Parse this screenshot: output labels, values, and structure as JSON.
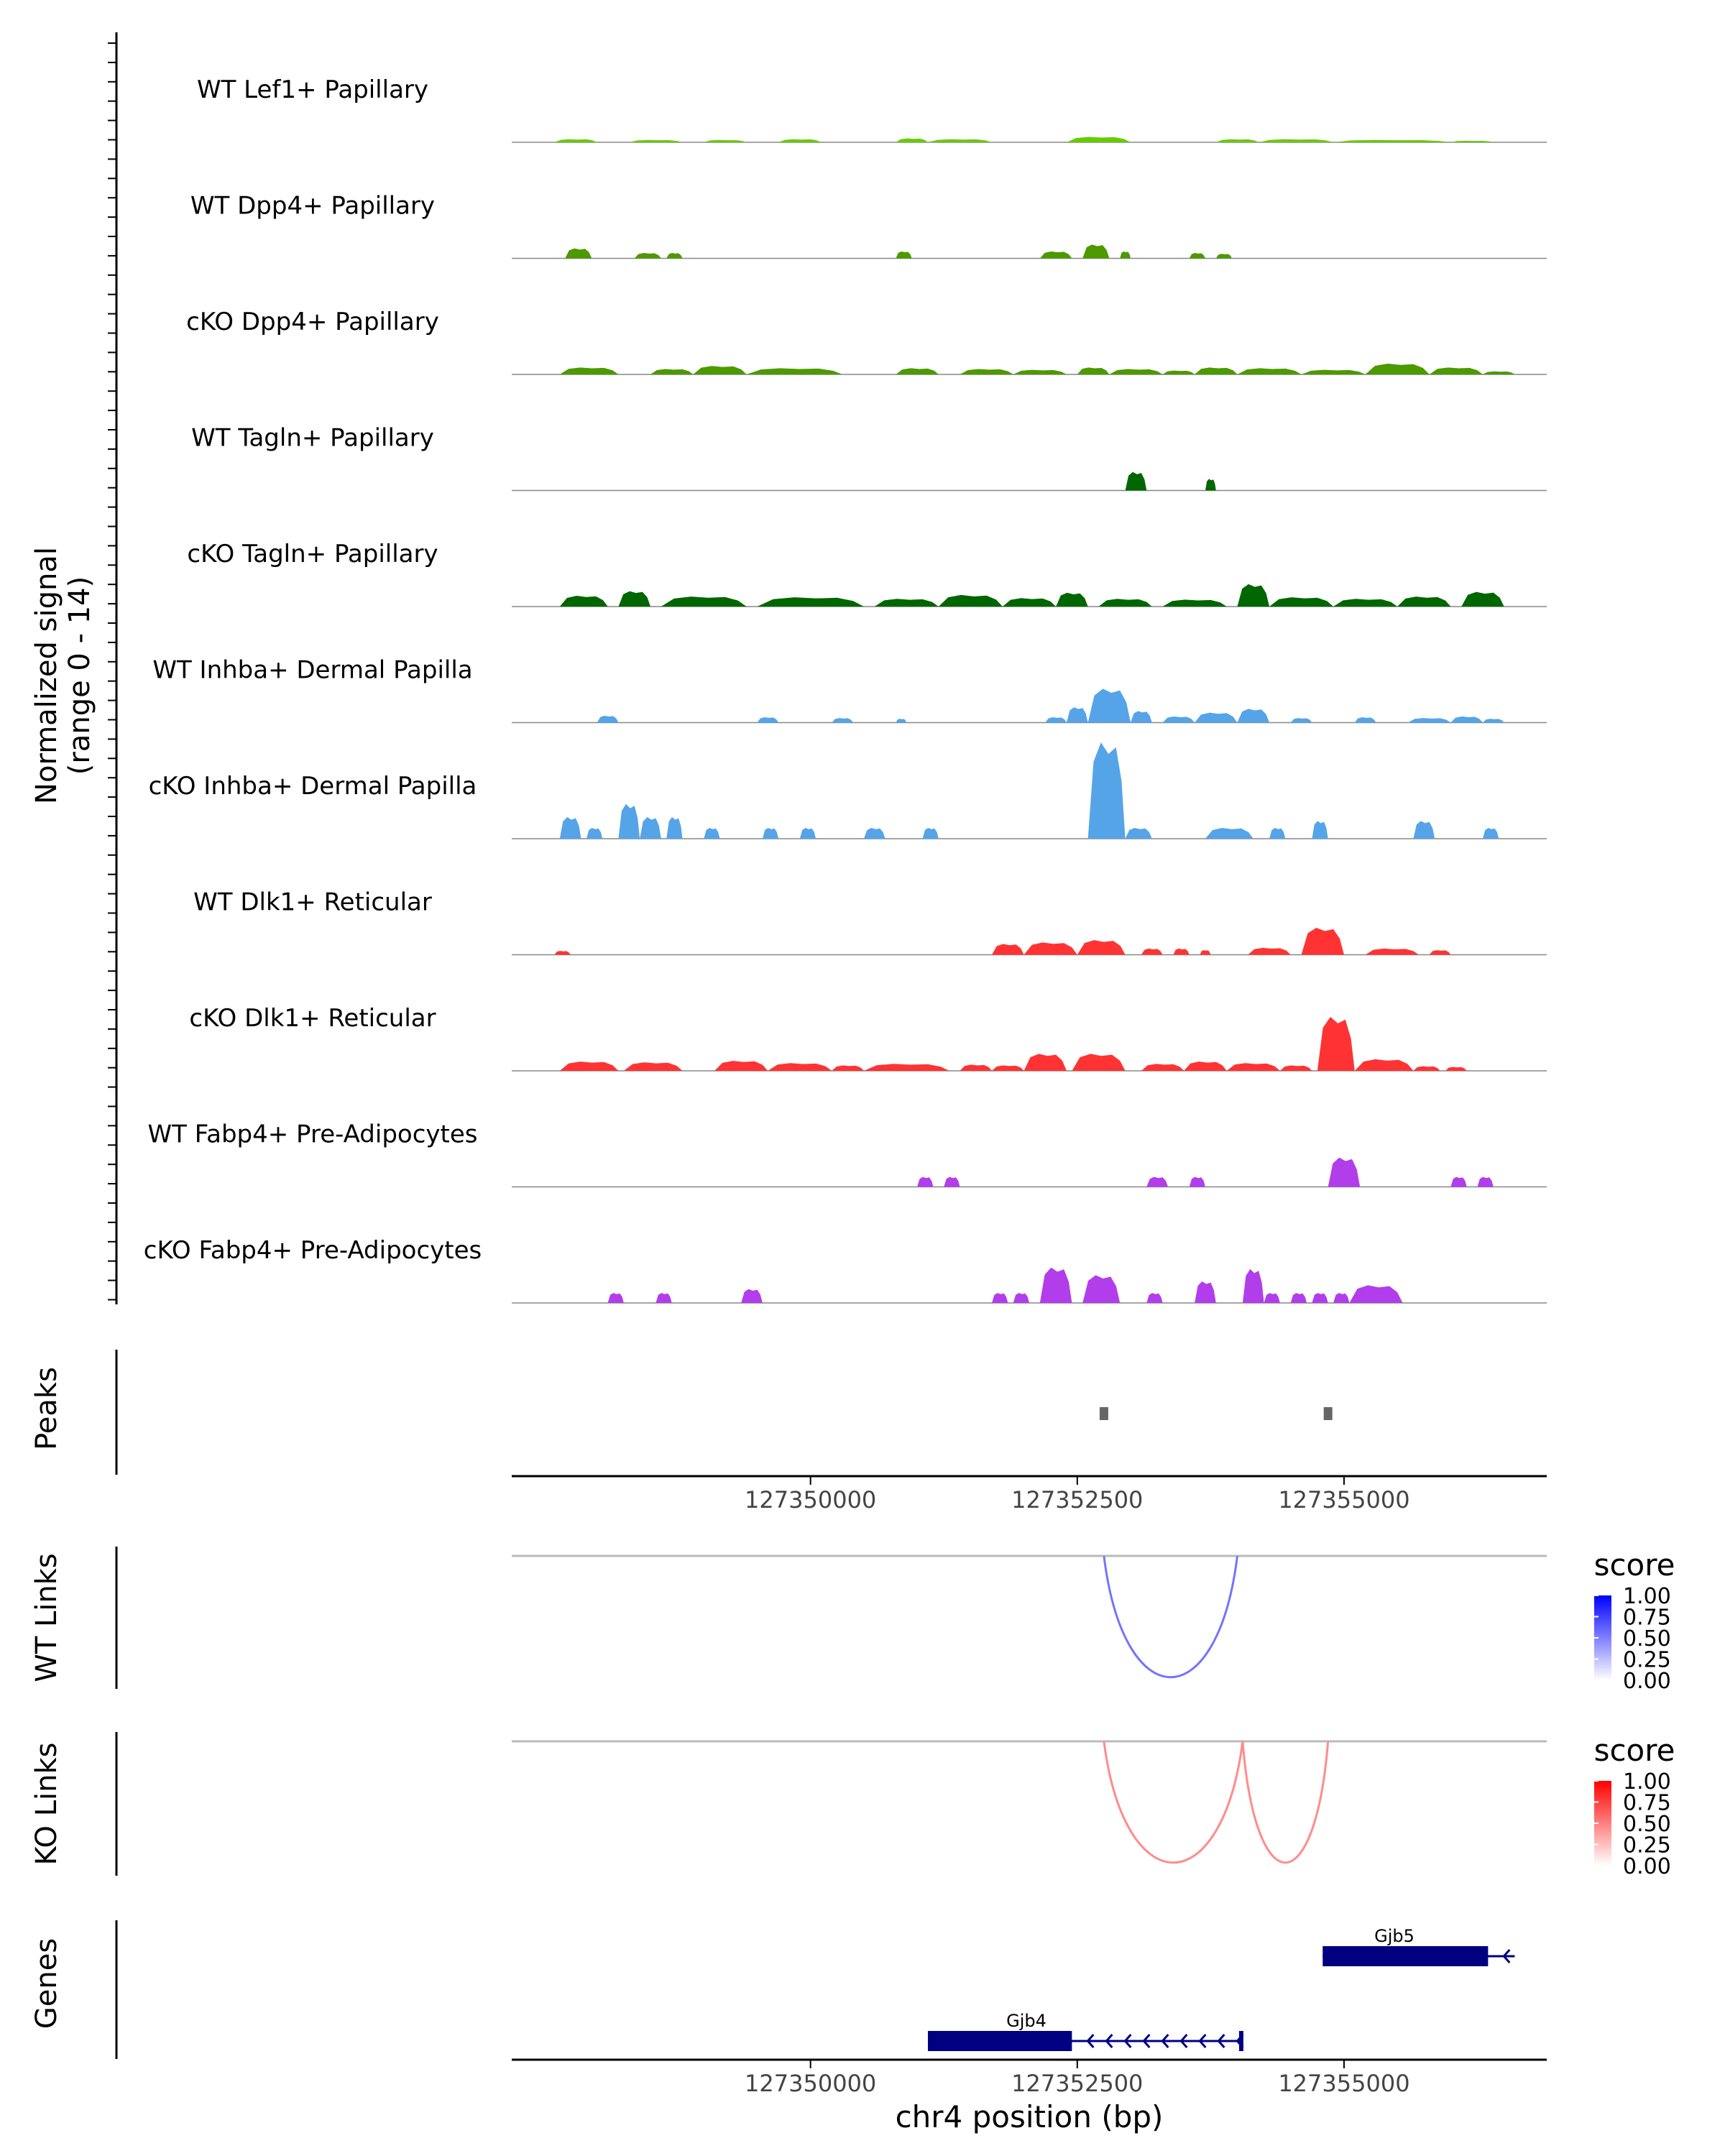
{
  "chart_data": {
    "type": "area",
    "title": "",
    "coverage": {
      "ylabel_line1": "Normalized signal",
      "ylabel_line2": "(range 0 - 14)",
      "ylim": [
        0,
        14
      ],
      "xlim": [
        127347200,
        127356900
      ],
      "tracks": [
        {
          "name": "WT Lef1+ Papillary",
          "color": "#66CC00",
          "regions": [
            [
              127347600,
              127348000,
              0.4
            ],
            [
              127348300,
              127348800,
              0.3
            ],
            [
              127349000,
              127349400,
              0.3
            ],
            [
              127349700,
              127350100,
              0.4
            ],
            [
              127350800,
              127351100,
              0.5
            ],
            [
              127351100,
              127351700,
              0.4
            ],
            [
              127352400,
              127353000,
              0.7
            ],
            [
              127353800,
              127354200,
              0.4
            ],
            [
              127354200,
              127354900,
              0.4
            ],
            [
              127354900,
              127356000,
              0.3
            ],
            [
              127356000,
              127356400,
              0.2
            ]
          ]
        },
        {
          "name": "WT Dpp4+ Papillary",
          "color": "#4C9900",
          "regions": [
            [
              127347700,
              127347950,
              1.3
            ],
            [
              127348350,
              127348600,
              0.7
            ],
            [
              127348650,
              127348800,
              0.7
            ],
            [
              127350800,
              127350950,
              0.9
            ],
            [
              127352150,
              127352450,
              0.9
            ],
            [
              127352550,
              127352800,
              1.8
            ],
            [
              127352900,
              127353000,
              0.9
            ],
            [
              127353550,
              127353700,
              0.7
            ],
            [
              127353800,
              127353950,
              0.6
            ]
          ]
        },
        {
          "name": "cKO Dpp4+ Papillary",
          "color": "#4C9900",
          "regions": [
            [
              127347650,
              127348200,
              0.9
            ],
            [
              127348500,
              127348900,
              0.7
            ],
            [
              127348900,
              127349400,
              1.1
            ],
            [
              127349400,
              127350300,
              0.8
            ],
            [
              127350800,
              127351200,
              0.8
            ],
            [
              127351400,
              127351900,
              0.7
            ],
            [
              127351900,
              127352400,
              0.6
            ],
            [
              127352500,
              127352800,
              0.9
            ],
            [
              127352800,
              127353300,
              0.7
            ],
            [
              127353300,
              127353600,
              0.5
            ],
            [
              127353600,
              127354000,
              0.9
            ],
            [
              127354000,
              127354600,
              0.8
            ],
            [
              127354600,
              127355200,
              0.6
            ],
            [
              127355200,
              127355800,
              1.4
            ],
            [
              127355800,
              127356300,
              0.9
            ],
            [
              127356300,
              127356600,
              0.4
            ]
          ]
        },
        {
          "name": "WT Tagln+ Papillary",
          "color": "#006600",
          "regions": [
            [
              127352950,
              127353150,
              2.4
            ],
            [
              127353700,
              127353800,
              1.5
            ]
          ]
        },
        {
          "name": "cKO Tagln+ Papillary",
          "color": "#006600",
          "regions": [
            [
              127347650,
              127348100,
              1.4
            ],
            [
              127348200,
              127348500,
              2.0
            ],
            [
              127348600,
              127349400,
              1.3
            ],
            [
              127349500,
              127350500,
              1.2
            ],
            [
              127350600,
              127351200,
              1.0
            ],
            [
              127351200,
              127351800,
              1.5
            ],
            [
              127351800,
              127352300,
              1.1
            ],
            [
              127352300,
              127352600,
              1.8
            ],
            [
              127352700,
              127353200,
              1.0
            ],
            [
              127353300,
              127353900,
              0.9
            ],
            [
              127354000,
              127354300,
              2.9
            ],
            [
              127354300,
              127354900,
              1.2
            ],
            [
              127354900,
              127355500,
              1.0
            ],
            [
              127355500,
              127356000,
              1.3
            ],
            [
              127356100,
              127356500,
              1.9
            ]
          ]
        },
        {
          "name": "WT Inhba+ Dermal Papilla",
          "color": "#56A4E8",
          "regions": [
            [
              127348000,
              127348200,
              0.9
            ],
            [
              127349500,
              127349700,
              0.7
            ],
            [
              127350200,
              127350400,
              0.6
            ],
            [
              127350800,
              127350900,
              0.5
            ],
            [
              127352200,
              127352400,
              0.7
            ],
            [
              127352400,
              127352600,
              2.0
            ],
            [
              127352600,
              127353000,
              4.4
            ],
            [
              127353000,
              127353200,
              1.5
            ],
            [
              127353300,
              127353600,
              0.8
            ],
            [
              127353600,
              127354000,
              1.3
            ],
            [
              127354000,
              127354300,
              1.8
            ],
            [
              127354500,
              127354700,
              0.6
            ],
            [
              127355100,
              127355300,
              0.7
            ],
            [
              127355600,
              127356000,
              0.6
            ],
            [
              127356000,
              127356300,
              0.8
            ],
            [
              127356300,
              127356500,
              0.5
            ]
          ]
        },
        {
          "name": "cKO Inhba+ Dermal Papilla",
          "color": "#56A4E8",
          "regions": [
            [
              127347650,
              127347850,
              2.8
            ],
            [
              127347900,
              127348050,
              1.4
            ],
            [
              127348200,
              127348400,
              4.5
            ],
            [
              127348400,
              127348600,
              2.8
            ],
            [
              127348650,
              127348800,
              2.8
            ],
            [
              127349000,
              127349150,
              1.4
            ],
            [
              127349550,
              127349700,
              1.4
            ],
            [
              127349900,
              127350050,
              1.4
            ],
            [
              127350500,
              127350700,
              1.4
            ],
            [
              127351050,
              127351200,
              1.4
            ],
            [
              127352600,
              127352950,
              12.5
            ],
            [
              127352950,
              127353200,
              1.4
            ],
            [
              127353700,
              127354150,
              1.4
            ],
            [
              127354300,
              127354450,
              1.4
            ],
            [
              127354700,
              127354850,
              2.3
            ],
            [
              127355650,
              127355850,
              2.3
            ],
            [
              127356300,
              127356450,
              1.4
            ]
          ]
        },
        {
          "name": "WT Dlk1+ Reticular",
          "color": "#FF3333",
          "regions": [
            [
              127347600,
              127347750,
              0.5
            ],
            [
              127351700,
              127352000,
              1.4
            ],
            [
              127352000,
              127352500,
              1.6
            ],
            [
              127352500,
              127352950,
              1.9
            ],
            [
              127353100,
              127353300,
              0.8
            ],
            [
              127353400,
              127353550,
              0.8
            ],
            [
              127353650,
              127353750,
              0.6
            ],
            [
              127354100,
              127354500,
              0.9
            ],
            [
              127354600,
              127355000,
              3.5
            ],
            [
              127355200,
              127355700,
              0.8
            ],
            [
              127355800,
              127356000,
              0.6
            ]
          ]
        },
        {
          "name": "cKO Dlk1+ Reticular",
          "color": "#FF3333",
          "regions": [
            [
              127347650,
              127348200,
              1.2
            ],
            [
              127348250,
              127348800,
              1.1
            ],
            [
              127349100,
              127349600,
              1.3
            ],
            [
              127349600,
              127350200,
              1.0
            ],
            [
              127350200,
              127350500,
              0.7
            ],
            [
              127350500,
              127351300,
              0.9
            ],
            [
              127351400,
              127351700,
              0.8
            ],
            [
              127351700,
              127352000,
              0.7
            ],
            [
              127352000,
              127352400,
              2.2
            ],
            [
              127352450,
              127352950,
              2.2
            ],
            [
              127353100,
              127353500,
              0.9
            ],
            [
              127353500,
              127353900,
              1.2
            ],
            [
              127353900,
              127354400,
              1.0
            ],
            [
              127354400,
              127354700,
              0.7
            ],
            [
              127354750,
              127355100,
              7.0
            ],
            [
              127355100,
              127355650,
              1.5
            ],
            [
              127355650,
              127355900,
              0.6
            ],
            [
              127355950,
              127356150,
              0.5
            ]
          ]
        },
        {
          "name": "WT Fabp4+ Pre-Adipocytes",
          "color": "#B23DEA",
          "regions": [
            [
              127351000,
              127351150,
              1.3
            ],
            [
              127351250,
              127351400,
              1.3
            ],
            [
              127353150,
              127353350,
              1.3
            ],
            [
              127353550,
              127353700,
              1.3
            ],
            [
              127354850,
              127355150,
              3.8
            ],
            [
              127356000,
              127356150,
              1.3
            ],
            [
              127356250,
              127356400,
              1.3
            ]
          ]
        },
        {
          "name": "cKO Fabp4+ Pre-Adipocytes",
          "color": "#B23DEA",
          "regions": [
            [
              127348100,
              127348250,
              1.3
            ],
            [
              127348550,
              127348700,
              1.3
            ],
            [
              127349350,
              127349550,
              1.8
            ],
            [
              127351700,
              127351850,
              1.3
            ],
            [
              127351900,
              127352050,
              1.3
            ],
            [
              127352150,
              127352450,
              4.6
            ],
            [
              127352550,
              127352900,
              3.6
            ],
            [
              127353150,
              127353300,
              1.3
            ],
            [
              127353600,
              127353800,
              2.8
            ],
            [
              127354050,
              127354250,
              4.4
            ],
            [
              127354250,
              127354400,
              1.3
            ],
            [
              127354500,
              127354650,
              1.3
            ],
            [
              127354700,
              127354850,
              1.3
            ],
            [
              127354900,
              127355050,
              1.3
            ],
            [
              127355050,
              127355550,
              2.3
            ]
          ]
        }
      ]
    },
    "peaks": {
      "label": "Peaks",
      "positions": [
        127352750,
        127354850
      ]
    },
    "x_axis": {
      "ticks": [
        127350000,
        127352500,
        127355000
      ],
      "tick_labels": [
        "127350000",
        "127352500",
        "127355000"
      ]
    },
    "links": [
      {
        "label": "WT Links",
        "legend_title": "score",
        "color_high": "#0000FF",
        "color_low": "#FFFFFF",
        "legend_ticks": [
          "1.00",
          "0.75",
          "0.50",
          "0.25",
          "0.00"
        ],
        "arcs": [
          {
            "start": 127352750,
            "end": 127354000,
            "score": 0.35
          }
        ]
      },
      {
        "label": "KO Links",
        "legend_title": "score",
        "color_high": "#FF0000",
        "color_low": "#FFFFFF",
        "legend_ticks": [
          "1.00",
          "0.75",
          "0.50",
          "0.25",
          "0.00"
        ],
        "arcs": [
          {
            "start": 127352750,
            "end": 127354050,
            "score": 0.25
          },
          {
            "start": 127354050,
            "end": 127354850,
            "score": 0.25
          }
        ]
      }
    ],
    "genes": {
      "label": "Genes",
      "color": "#000080",
      "items": [
        {
          "name": "Gjb5",
          "start": 127354800,
          "end": 127356600,
          "exon_start": 127354800,
          "exon_end": 127356350,
          "strand": "-"
        },
        {
          "name": "Gjb4",
          "start": 127351100,
          "end": 127354050,
          "exon_start": 127351100,
          "exon_end": 127352450,
          "strand": "-"
        }
      ]
    },
    "xlabel": "chr4 position (bp)"
  }
}
